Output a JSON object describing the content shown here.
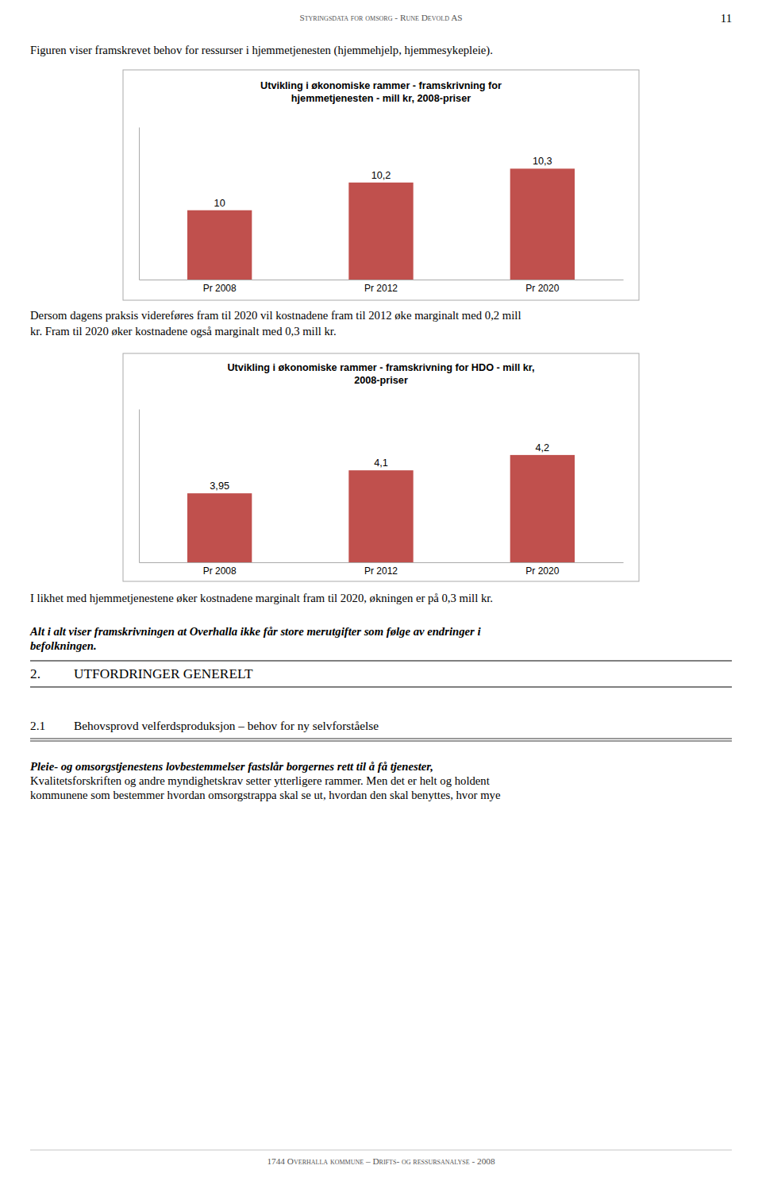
{
  "page": {
    "header": "Styringsdata for omsorg - Rune Devold AS",
    "page_number": "11",
    "intro_text": "Figuren viser framskrevet behov for ressurser i hjemmetjenesten (hjemmehjelp, hjemmesykepleie).",
    "text1_line1": "Dersom dagens praksis videreføres fram til 2020 vil kostnadene fram til 2012 øke marginalt med 0,2 mill",
    "text1_line2": "kr. Fram til 2020 øker kostnadene også marginalt med 0,3 mill kr.",
    "text2": "I likhet med hjemmetjenestene øker kostnadene marginalt fram til 2020, økningen er på 0,3 mill kr.",
    "text3_line1": "Alt i alt viser framskrivningen at Overhalla ikke får store merutgifter som følge av endringer i",
    "text3_line2": "befolkningen.",
    "section_number": "2.",
    "section_title": "UTFORDRINGER GENERELT",
    "subsection_number": "2.1",
    "subsection_title": "Behovsprovd velferdsproduksjon – behov for ny selvforståelse",
    "body_line1": "Pleie- og omsorgstjenestens lovbestemmelser fastslår borgernes rett til å få tjenester,",
    "body_line2": "Kvalitetsforskriften og andre myndighetskrav setter ytterligere rammer. Men det er helt og holdent",
    "body_line3": "kommunene som bestemmer hvordan omsorgstrappa skal se ut, hvordan den skal benyttes, hvor mye",
    "footer": "1744 Overhalla kommune – Drifts- og ressursanalyse - 2008"
  },
  "chart_data": [
    {
      "type": "bar",
      "title": "Utvikling i økonomiske rammer - framskrivning for hjemmetjenesten - mill kr, 2008-priser",
      "categories": [
        "Pr 2008",
        "Pr 2012",
        "Pr 2020"
      ],
      "values": [
        10.0,
        10.2,
        10.3
      ],
      "value_labels": [
        "10",
        "10,2",
        "10,3"
      ],
      "data_labels": true,
      "color": "#c0504d",
      "ylim": [
        9.5,
        10.6
      ],
      "tick_labels": "x",
      "grid": false
    },
    {
      "type": "bar",
      "title": "Utvikling i økonomiske rammer - framskrivning for HDO - mill kr, 2008-priser",
      "categories": [
        "Pr 2008",
        "Pr 2012",
        "Pr 2020"
      ],
      "values": [
        3.95,
        4.1,
        4.2
      ],
      "value_labels": [
        "3,95",
        "4,1",
        "4,2"
      ],
      "data_labels": true,
      "color": "#c0504d",
      "ylim": [
        3.5,
        4.5
      ],
      "tick_labels": "x",
      "grid": false
    }
  ]
}
